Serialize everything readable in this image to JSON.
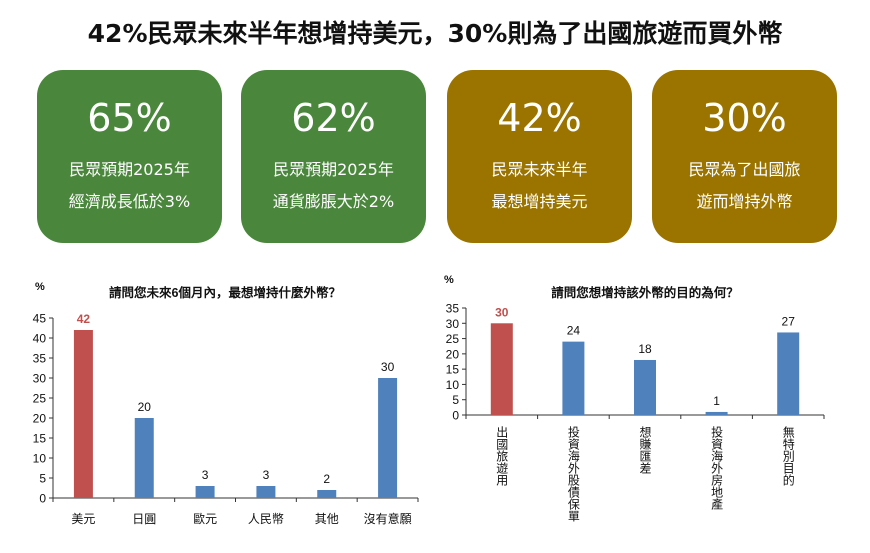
{
  "headline": "42%民眾未來半年想增持美元，30%則為了出國旅遊而買外幣",
  "colors": {
    "green": "#4a873c",
    "gold": "#9b7400",
    "highlight": "#c0504d",
    "bar": "#4f81bd"
  },
  "cards": [
    {
      "value": "65%",
      "line1": "民眾預期2025年",
      "line2": "經濟成長低於3%",
      "color": "green"
    },
    {
      "value": "62%",
      "line1": "民眾預期2025年",
      "line2": "通貨膨脹大於2%",
      "color": "green"
    },
    {
      "value": "42%",
      "line1": "民眾未來半年",
      "line2": "最想增持美元",
      "color": "gold"
    },
    {
      "value": "30%",
      "line1": "民眾為了出國旅",
      "line2": "遊而增持外幣",
      "color": "gold"
    }
  ],
  "chart_data": [
    {
      "type": "bar",
      "title": "請問您未來6個月內，最想增持什麼外幣？",
      "ylabel": "%",
      "categories": [
        "美元",
        "日圓",
        "歐元",
        "人民幣",
        "其他",
        "沒有意願"
      ],
      "values": [
        42,
        20,
        3,
        3,
        2,
        30
      ],
      "highlight_index": 0,
      "ylim": [
        0,
        45
      ],
      "yticks": [
        0,
        5,
        10,
        15,
        20,
        25,
        30,
        35,
        40,
        45
      ],
      "grid": false
    },
    {
      "type": "bar",
      "title": "請問您想增持該外幣的目的為何？",
      "ylabel": "%",
      "categories": [
        "出國旅遊用",
        "投資海外股債保單",
        "想賺匯差",
        "投資海外房地產",
        "無特別目的"
      ],
      "values": [
        30,
        24,
        18,
        1,
        27
      ],
      "highlight_index": 0,
      "ylim": [
        0,
        35
      ],
      "yticks": [
        0,
        5,
        10,
        15,
        20,
        25,
        30,
        35
      ],
      "grid": false
    }
  ]
}
